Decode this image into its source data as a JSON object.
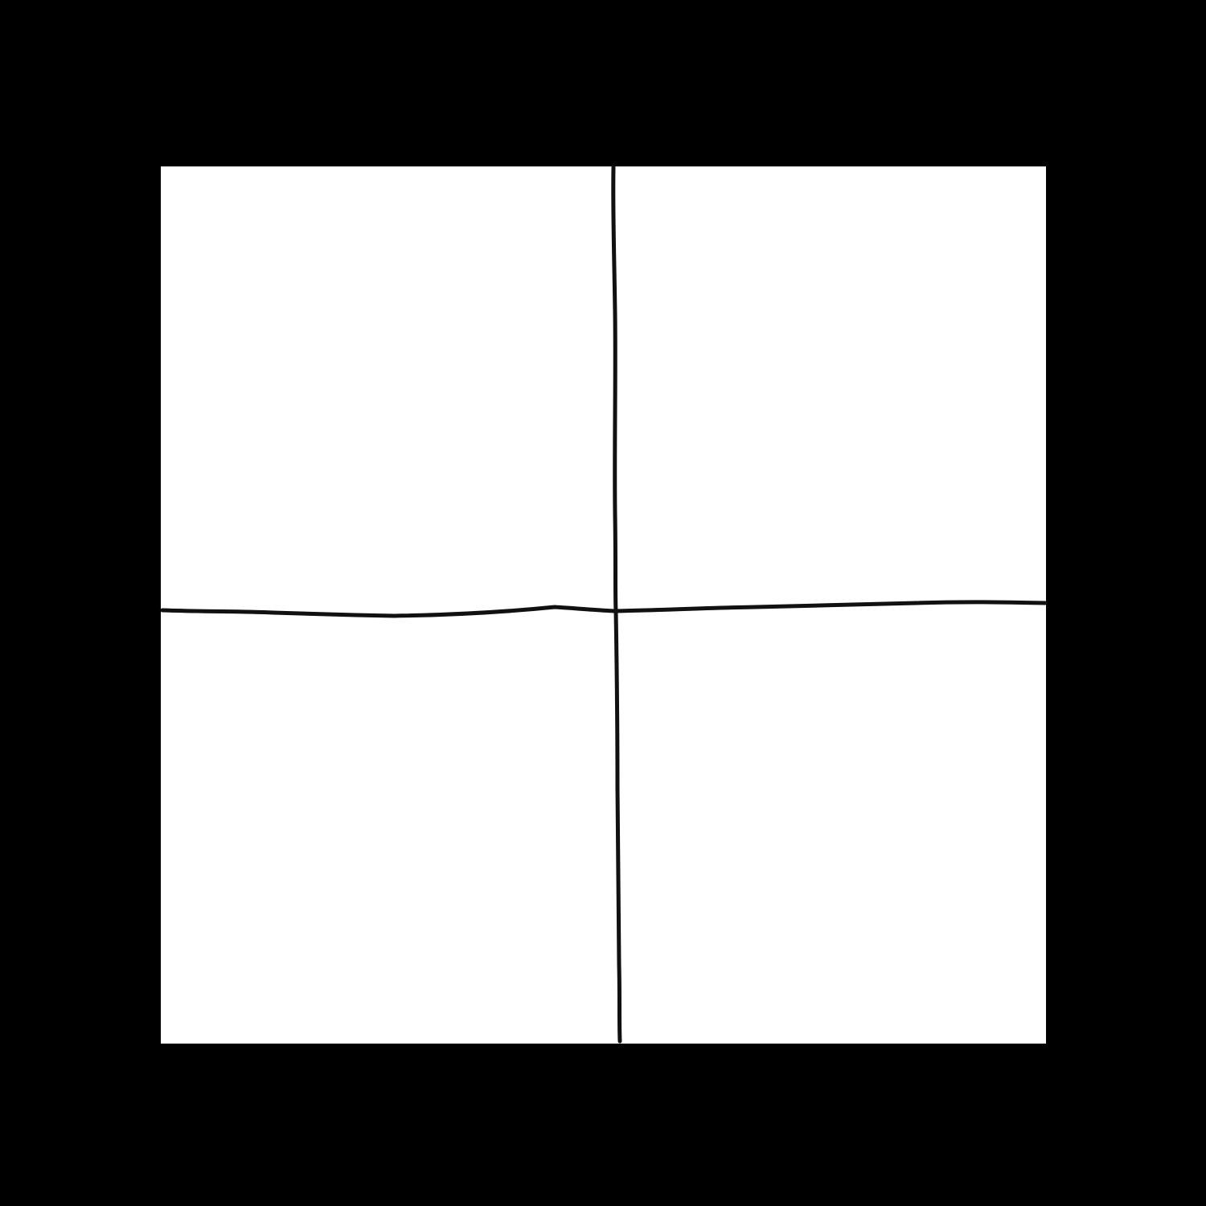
{
  "colors": {
    "background": "#000000",
    "paper": "#ffffff",
    "ink": "#111111"
  },
  "drawing": {
    "subject": "hand-drawn-cross-dividing-square",
    "quadrant_count": 4
  }
}
